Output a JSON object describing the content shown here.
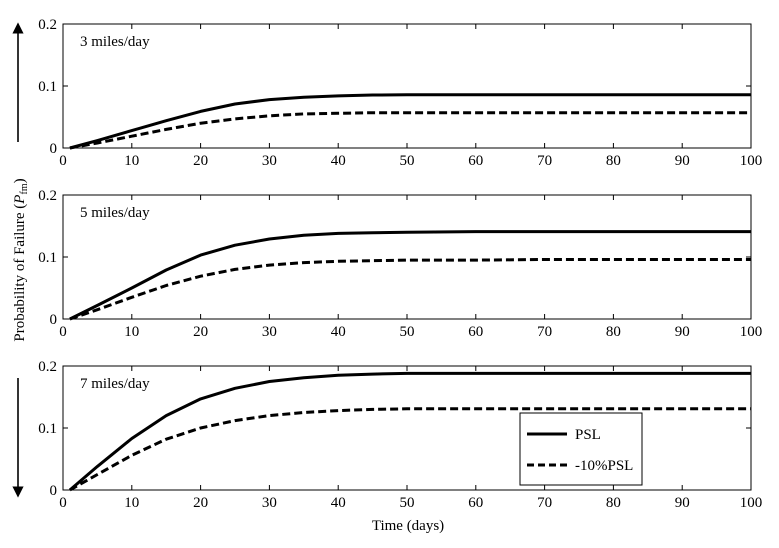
{
  "chart_data": {
    "type": "line",
    "ylabel_main": "Probability of Failure (",
    "ylabel_var": "P",
    "ylabel_sub": "fm",
    "ylabel_close": ")",
    "xlabel": "Time (days)",
    "xlim": [
      0,
      100
    ],
    "xticks": [
      "0",
      "10",
      "20",
      "30",
      "40",
      "50",
      "60",
      "70",
      "80",
      "90",
      "100"
    ],
    "legend": {
      "placement": "bottom-right of lowest panel",
      "entries": [
        {
          "name": "PSL",
          "style": "solid"
        },
        {
          "name": "-10%PSL",
          "style": "dashed"
        }
      ]
    },
    "panels": [
      {
        "label": "3 miles/day",
        "ylim": [
          0,
          0.2
        ],
        "yticks": [
          "0",
          "0.1",
          "0.2"
        ],
        "x": [
          1,
          5,
          10,
          15,
          20,
          25,
          30,
          35,
          40,
          45,
          50,
          60,
          70,
          80,
          90,
          100
        ],
        "series": [
          {
            "name": "PSL",
            "values": [
              0.0,
              0.012,
              0.028,
              0.044,
              0.059,
              0.071,
              0.078,
              0.082,
              0.084,
              0.0855,
              0.0858,
              0.086,
              0.086,
              0.086,
              0.086,
              0.086
            ]
          },
          {
            "name": "-10%PSL",
            "values": [
              0.0,
              0.008,
              0.019,
              0.03,
              0.04,
              0.047,
              0.052,
              0.055,
              0.056,
              0.057,
              0.057,
              0.057,
              0.057,
              0.057,
              0.057,
              0.057
            ]
          }
        ]
      },
      {
        "label": "5 miles/day",
        "ylim": [
          0,
          0.2
        ],
        "yticks": [
          "0",
          "0.1",
          "0.2"
        ],
        "x": [
          1,
          5,
          10,
          15,
          20,
          25,
          30,
          35,
          40,
          45,
          50,
          60,
          70,
          80,
          90,
          100
        ],
        "series": [
          {
            "name": "PSL",
            "values": [
              0.0,
              0.022,
              0.05,
              0.079,
              0.103,
              0.119,
              0.129,
              0.135,
              0.138,
              0.139,
              0.14,
              0.141,
              0.141,
              0.141,
              0.141,
              0.141
            ]
          },
          {
            "name": "-10%PSL",
            "values": [
              0.0,
              0.015,
              0.035,
              0.054,
              0.069,
              0.08,
              0.087,
              0.091,
              0.093,
              0.094,
              0.095,
              0.095,
              0.096,
              0.096,
              0.096,
              0.096
            ]
          }
        ]
      },
      {
        "label": "7 miles/day",
        "ylim": [
          0,
          0.2
        ],
        "yticks": [
          "0",
          "0.1",
          "0.2"
        ],
        "x": [
          1,
          5,
          10,
          15,
          20,
          25,
          30,
          35,
          40,
          45,
          50,
          60,
          70,
          80,
          90,
          100
        ],
        "series": [
          {
            "name": "PSL",
            "values": [
              0.0,
              0.038,
              0.083,
              0.12,
              0.147,
              0.164,
              0.175,
              0.181,
              0.185,
              0.187,
              0.188,
              0.188,
              0.188,
              0.188,
              0.188,
              0.188
            ]
          },
          {
            "name": "-10%PSL",
            "values": [
              0.0,
              0.025,
              0.056,
              0.082,
              0.1,
              0.112,
              0.12,
              0.125,
              0.128,
              0.13,
              0.131,
              0.131,
              0.131,
              0.131,
              0.131,
              0.131
            ]
          }
        ]
      }
    ]
  }
}
